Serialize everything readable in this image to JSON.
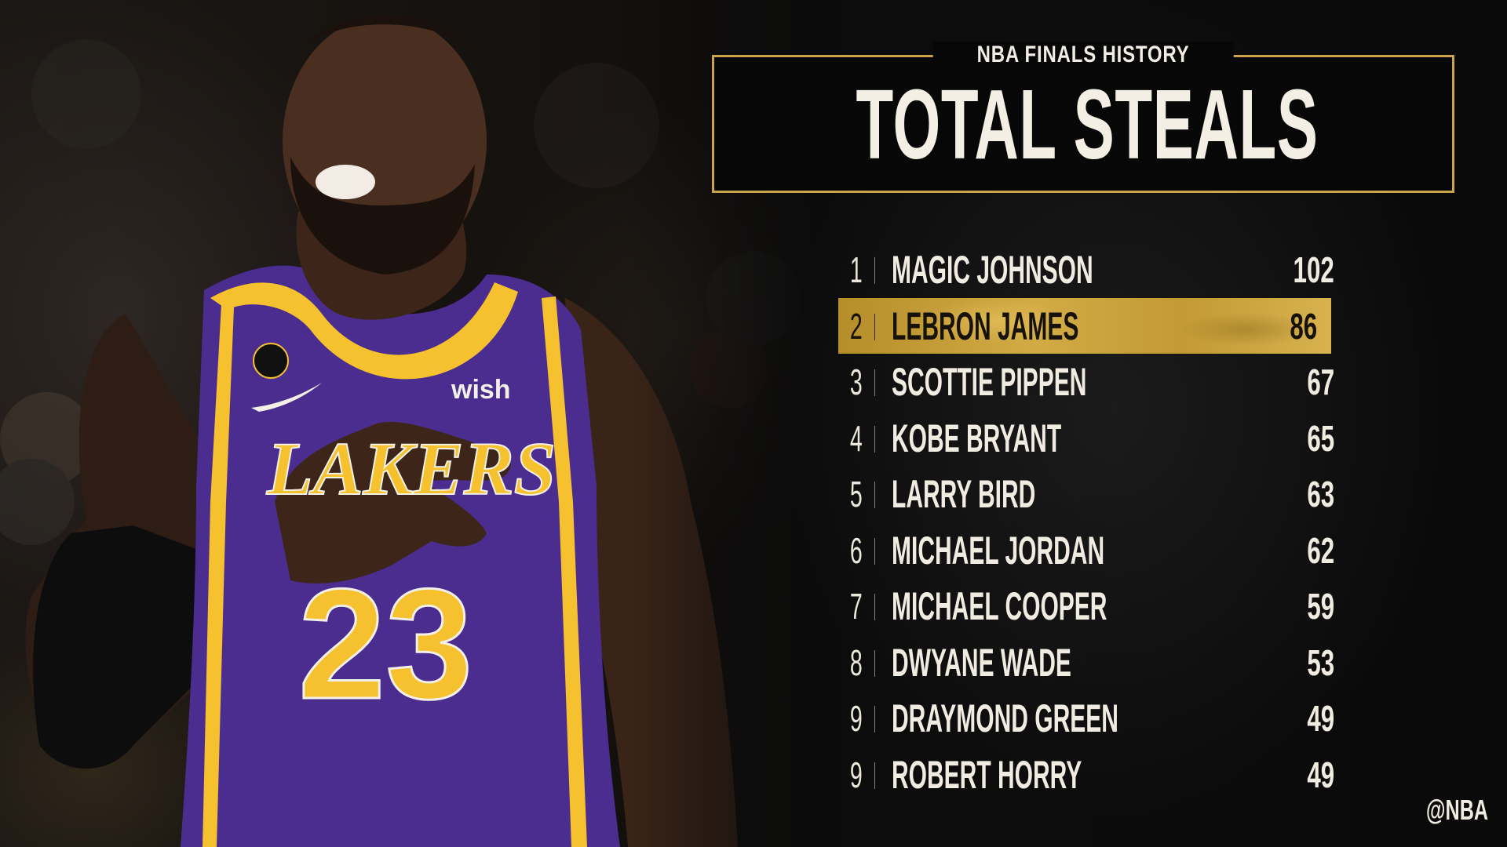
{
  "header": {
    "supertitle": "NBA FINALS HISTORY",
    "title": "TOTAL STEALS"
  },
  "leaders": [
    {
      "rank": "1",
      "name": "MAGIC JOHNSON",
      "value": "102"
    },
    {
      "rank": "2",
      "name": "LEBRON JAMES",
      "value": "86"
    },
    {
      "rank": "3",
      "name": "SCOTTIE PIPPEN",
      "value": "67"
    },
    {
      "rank": "4",
      "name": "KOBE BRYANT",
      "value": "65"
    },
    {
      "rank": "5",
      "name": "LARRY BIRD",
      "value": "63"
    },
    {
      "rank": "6",
      "name": "MICHAEL JORDAN",
      "value": "62"
    },
    {
      "rank": "7",
      "name": "MICHAEL COOPER",
      "value": "59"
    },
    {
      "rank": "8",
      "name": "DWYANE WADE",
      "value": "53"
    },
    {
      "rank": "9",
      "name": "DRAYMOND GREEN",
      "value": "49"
    },
    {
      "rank": "9",
      "name": "ROBERT HORRY",
      "value": "49"
    }
  ],
  "highlighted_rank_index": 1,
  "photo": {
    "jersey_team": "LAKERS",
    "jersey_number": "23",
    "jersey_sponsor": "wish"
  },
  "watermark": "@NBA",
  "colors": {
    "gold": "#c9a44a",
    "jersey_purple": "#4b2d90",
    "jersey_gold": "#f5c12e"
  }
}
